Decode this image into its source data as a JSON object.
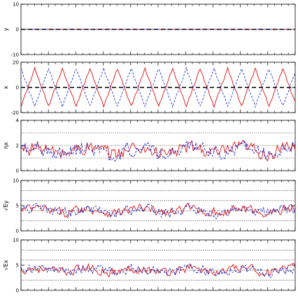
{
  "chart_data": [
    {
      "type": "line",
      "ylabel": "y",
      "ylim": [
        -10,
        10
      ],
      "yticks": [
        -10,
        0,
        10
      ],
      "dotted_lines": [],
      "series": [
        {
          "color": "#dd1111",
          "dash": "solid",
          "amplitude": 0,
          "period": 0,
          "mean": 0
        },
        {
          "color": "#2233cc",
          "dash": "dashed",
          "amplitude": 0,
          "period": 0,
          "mean": 0
        }
      ]
    },
    {
      "type": "line",
      "ylabel": "x",
      "ylim": [
        -20,
        20
      ],
      "yticks": [
        -20,
        0,
        20
      ],
      "dotted_lines": [],
      "series": [
        {
          "color": "#dd1111",
          "dash": "solid",
          "shape": "triangle_wave",
          "amplitude": 15,
          "period": 100,
          "phase": 0
        },
        {
          "color": "#2233cc",
          "dash": "dashed",
          "shape": "triangle_wave",
          "amplitude": 15,
          "period": 100,
          "phase": 0.5
        }
      ]
    },
    {
      "type": "line",
      "ylabel": "ηx",
      "ylim": [
        0,
        4
      ],
      "yticks": [
        0,
        2,
        4
      ],
      "dotted_lines": [
        1,
        2,
        3
      ],
      "series": [
        {
          "color": "#dd1111",
          "dash": "solid",
          "shape": "noisy",
          "mean": 1.6,
          "spread": 0.7
        },
        {
          "color": "#2233cc",
          "dash": "dashed",
          "shape": "noisy",
          "mean": 1.6,
          "spread": 0.7
        }
      ]
    },
    {
      "type": "line",
      "ylabel": "√Ey",
      "ylim": [
        0,
        10
      ],
      "yticks": [
        0,
        5,
        10
      ],
      "dotted_lines": [
        2,
        4,
        6,
        8
      ],
      "series": [
        {
          "color": "#dd1111",
          "dash": "solid",
          "shape": "noisy",
          "mean": 4.0,
          "spread": 1.2
        },
        {
          "color": "#2233cc",
          "dash": "dashed",
          "shape": "noisy",
          "mean": 4.0,
          "spread": 1.2
        }
      ]
    },
    {
      "type": "line",
      "ylabel": "√Ex",
      "ylim": [
        0,
        10
      ],
      "yticks": [
        0,
        5,
        10
      ],
      "dotted_lines": [
        2,
        4,
        6,
        8
      ],
      "series": [
        {
          "color": "#dd1111",
          "dash": "solid",
          "shape": "noisy",
          "mean": 4.0,
          "spread": 1.1
        },
        {
          "color": "#2233cc",
          "dash": "dashed",
          "shape": "noisy",
          "mean": 4.0,
          "spread": 1.1
        }
      ]
    }
  ],
  "x_axis": {
    "n_samples": 200,
    "major_tick_every": 20,
    "minor_tick_every": 5
  }
}
